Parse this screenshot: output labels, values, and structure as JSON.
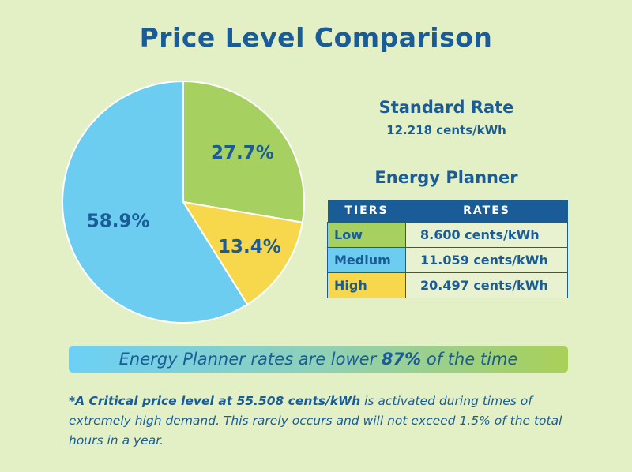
{
  "title": "Price Level Comparison",
  "standard_rate": {
    "title": "Standard Rate",
    "value": "12.218 cents/kWh"
  },
  "energy_planner": {
    "title": "Energy Planner",
    "headers": [
      "TIERS",
      "RATES"
    ],
    "rows": [
      {
        "tier": "Low",
        "rate": "8.600 cents/kWh"
      },
      {
        "tier": "Medium",
        "rate": "11.059  cents/kWh"
      },
      {
        "tier": "High",
        "rate": "20.497 cents/kWh"
      }
    ]
  },
  "banner": {
    "before": "Energy Planner rates are lower ",
    "highlight": "87%",
    "after": " of the time"
  },
  "footnote": {
    "bold": "*A Critical price level at 55.508 cents/kWh",
    "rest": " is activated during times of extremely high demand. This rarely occurs and will not exceed 1.5% of the total hours in a year."
  },
  "colors": {
    "low": "#a6d060",
    "medium": "#6ccdf0",
    "high": "#f7d84c",
    "text": "#1a5c97"
  },
  "chart_data": {
    "type": "pie",
    "title": "Price Level Comparison",
    "slices": [
      {
        "name": "Low",
        "value": 27.7,
        "label": "27.7%",
        "color": "#a6d060"
      },
      {
        "name": "High",
        "value": 13.4,
        "label": "13.4%",
        "color": "#f7d84c"
      },
      {
        "name": "Medium",
        "value": 58.9,
        "label": "58.9%",
        "color": "#6ccdf0"
      }
    ]
  }
}
